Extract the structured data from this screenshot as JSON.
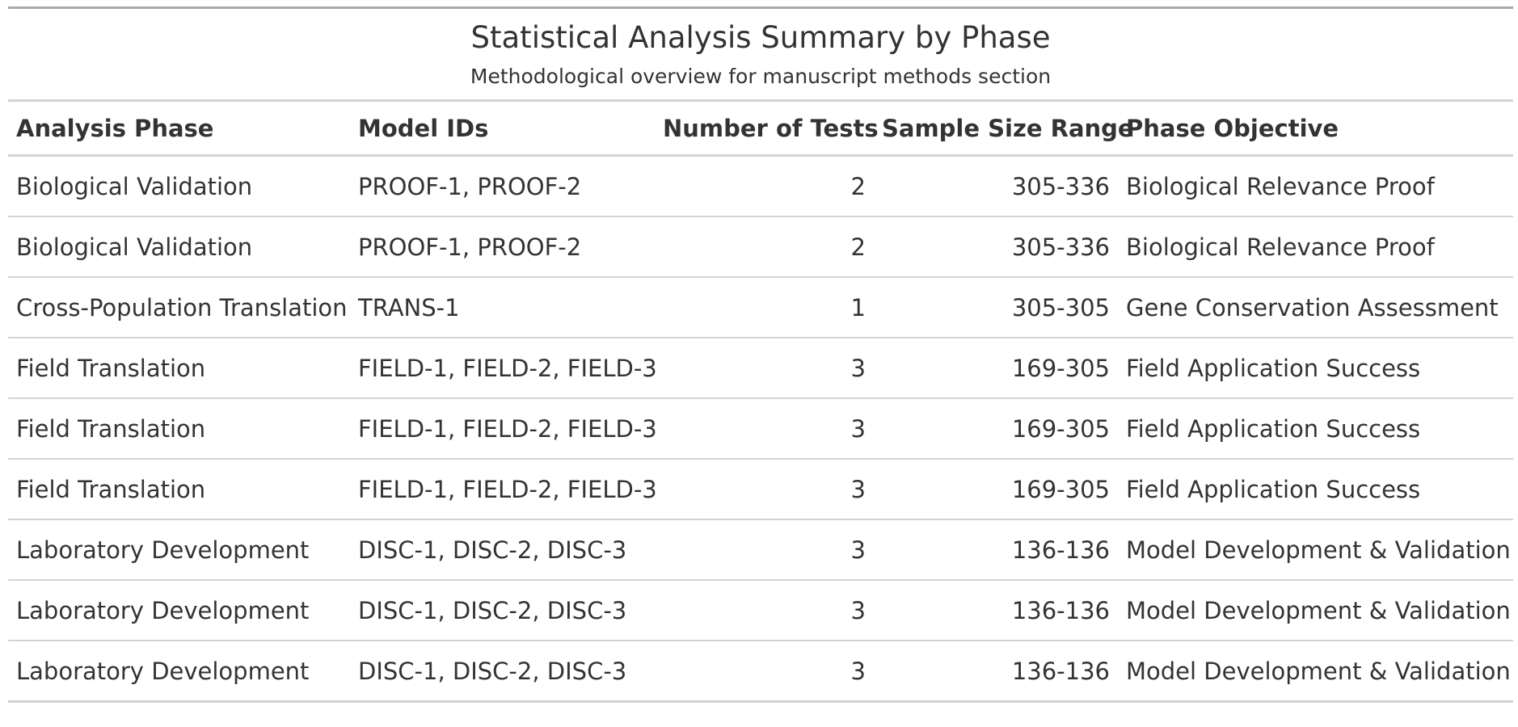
{
  "title": "Statistical Analysis Summary by Phase",
  "subtitle": "Methodological overview for manuscript methods section",
  "columns": [
    "Analysis Phase",
    "Model IDs",
    "Number of Tests",
    "Sample Size Range",
    "Phase Objective"
  ],
  "rows": [
    [
      "Biological Validation",
      "PROOF-1, PROOF-2",
      "2",
      "305-336",
      "Biological Relevance Proof"
    ],
    [
      "Biological Validation",
      "PROOF-1, PROOF-2",
      "2",
      "305-336",
      "Biological Relevance Proof"
    ],
    [
      "Cross-Population Translation",
      "TRANS-1",
      "1",
      "305-305",
      "Gene Conservation Assessment"
    ],
    [
      "Field Translation",
      "FIELD-1, FIELD-2, FIELD-3",
      "3",
      "169-305",
      "Field Application Success"
    ],
    [
      "Field Translation",
      "FIELD-1, FIELD-2, FIELD-3",
      "3",
      "169-305",
      "Field Application Success"
    ],
    [
      "Field Translation",
      "FIELD-1, FIELD-2, FIELD-3",
      "3",
      "169-305",
      "Field Application Success"
    ],
    [
      "Laboratory Development",
      "DISC-1, DISC-2, DISC-3",
      "3",
      "136-136",
      "Model Development & Validation"
    ],
    [
      "Laboratory Development",
      "DISC-1, DISC-2, DISC-3",
      "3",
      "136-136",
      "Model Development & Validation"
    ],
    [
      "Laboratory Development",
      "DISC-1, DISC-2, DISC-3",
      "3",
      "136-136",
      "Model Development & Validation"
    ]
  ]
}
